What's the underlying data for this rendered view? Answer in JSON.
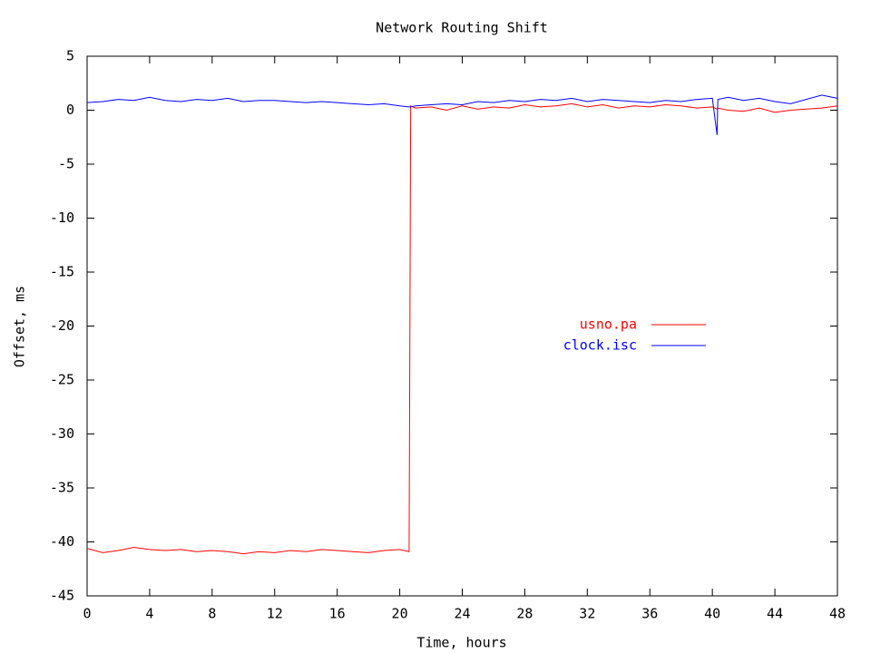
{
  "chart_data": {
    "type": "line",
    "title": "Network Routing Shift",
    "xlabel": "Time, hours",
    "ylabel": "Offset, ms",
    "xlim": [
      0,
      48
    ],
    "xticks": [
      0,
      4,
      8,
      12,
      16,
      20,
      24,
      28,
      32,
      36,
      40,
      44,
      48
    ],
    "ylim": [
      -45,
      5
    ],
    "yticks": [
      -45,
      -40,
      -35,
      -30,
      -25,
      -20,
      -15,
      -10,
      -5,
      0,
      5
    ],
    "legend": "right",
    "x": [
      0,
      1,
      2,
      3,
      4,
      5,
      6,
      7,
      8,
      9,
      10,
      11,
      12,
      13,
      14,
      15,
      16,
      17,
      18,
      19,
      20,
      20.6,
      20.7,
      21,
      22,
      23,
      24,
      25,
      26,
      27,
      28,
      29,
      30,
      31,
      32,
      33,
      34,
      35,
      36,
      37,
      38,
      39,
      40,
      40.3,
      40.35,
      41,
      42,
      43,
      44,
      45,
      46,
      47,
      48
    ],
    "series": [
      {
        "name": "usno.pa",
        "color": "#ff0000",
        "values": [
          -40.6,
          -41.0,
          -40.8,
          -40.5,
          -40.7,
          -40.8,
          -40.7,
          -40.9,
          -40.8,
          -40.9,
          -41.1,
          -40.9,
          -41.0,
          -40.8,
          -40.9,
          -40.7,
          -40.8,
          -40.9,
          -41.0,
          -40.8,
          -40.7,
          -40.9,
          0.4,
          0.2,
          0.3,
          0.0,
          0.4,
          0.1,
          0.3,
          0.2,
          0.5,
          0.3,
          0.4,
          0.6,
          0.3,
          0.5,
          0.2,
          0.4,
          0.3,
          0.5,
          0.4,
          0.2,
          0.3,
          0.1,
          0.2,
          0.0,
          -0.1,
          0.2,
          -0.2,
          0.0,
          0.1,
          0.2,
          0.4
        ]
      },
      {
        "name": "clock.isc",
        "color": "#0000ff",
        "values": [
          0.7,
          0.8,
          1.0,
          0.9,
          1.2,
          0.9,
          0.8,
          1.0,
          0.9,
          1.1,
          0.8,
          0.9,
          0.9,
          0.8,
          0.7,
          0.8,
          0.7,
          0.6,
          0.5,
          0.6,
          0.4,
          0.3,
          0.3,
          0.4,
          0.5,
          0.6,
          0.5,
          0.8,
          0.7,
          0.9,
          0.8,
          1.0,
          0.9,
          1.1,
          0.8,
          1.0,
          0.9,
          0.8,
          0.7,
          0.9,
          0.8,
          1.0,
          1.1,
          -2.3,
          1.0,
          1.2,
          0.9,
          1.1,
          0.8,
          0.6,
          1.0,
          1.4,
          1.1
        ]
      }
    ]
  }
}
